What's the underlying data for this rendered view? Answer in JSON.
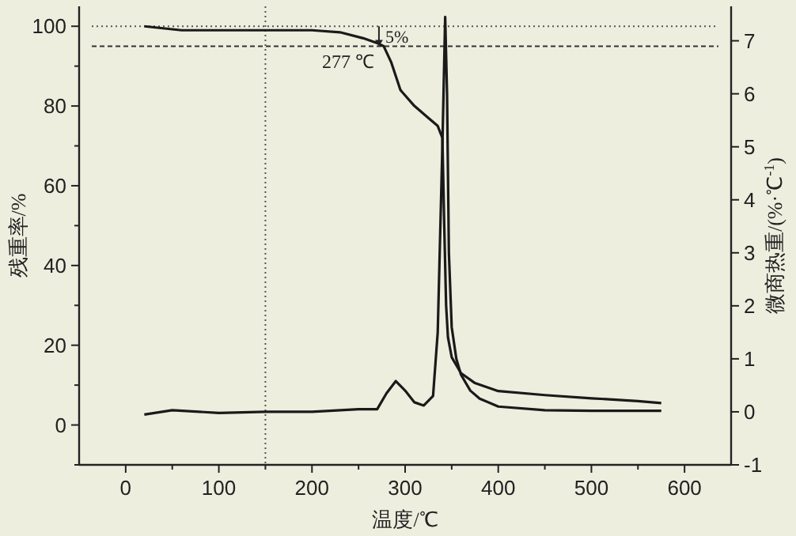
{
  "chart_data": {
    "type": "line",
    "xlabel": "温度/℃",
    "ylabel": "残重率/%",
    "y2label": "微商热重/(%·℃$^{-1}$)",
    "xlim": [
      -50,
      650
    ],
    "xticks": [
      0,
      {
        "value": 50,
        "label": null
      },
      100,
      {
        "value": 150,
        "label": null
      },
      200,
      {
        "value": 250,
        "label": null
      },
      300,
      {
        "value": 350,
        "label": null
      },
      400,
      {
        "value": 450,
        "label": null
      },
      500,
      {
        "value": 550,
        "label": null
      },
      600
    ],
    "ylim": [
      -10,
      105
    ],
    "yticks": [
      {
        "value": -10,
        "label": null
      },
      0,
      {
        "value": 10,
        "label": null
      },
      20,
      {
        "value": 30,
        "label": null
      },
      40,
      {
        "value": 50,
        "label": null
      },
      60,
      {
        "value": 70,
        "label": null
      },
      80,
      {
        "value": 90,
        "label": null
      },
      100
    ],
    "y2lim": [
      -1,
      7.65
    ],
    "y2ticks": [
      -1,
      0,
      1,
      2,
      3,
      4,
      5,
      6,
      7
    ],
    "grid": false,
    "marker": "none",
    "line_style": "solid",
    "series": [
      {
        "color": "#1a1a1a",
        "axis": "y",
        "x": [
          20,
          40,
          60,
          100,
          150,
          200,
          230,
          255,
          270,
          277,
          285,
          295,
          310,
          325,
          335,
          340,
          342,
          344,
          346,
          350,
          360,
          375,
          400,
          450,
          500,
          550,
          575
        ],
        "values": [
          100,
          99.5,
          99,
          99,
          99,
          99,
          98.5,
          97,
          95.8,
          95,
          91,
          84,
          80,
          77,
          75,
          72,
          50,
          30,
          22,
          17,
          13,
          10.5,
          8.5,
          7.5,
          6.7,
          6,
          5.5
        ]
      },
      {
        "color": "#1a1a1a",
        "axis": "y2",
        "x": [
          20,
          50,
          100,
          150,
          200,
          250,
          270,
          280,
          290,
          300,
          310,
          320,
          330,
          335,
          340,
          343,
          345,
          347,
          350,
          355,
          360,
          370,
          380,
          400,
          450,
          500,
          575
        ],
        "values": [
          -0.05,
          0.03,
          -0.02,
          0,
          0,
          0.05,
          0.05,
          0.35,
          0.58,
          0.4,
          0.18,
          0.12,
          0.3,
          1.5,
          5,
          7.45,
          6,
          3,
          1.6,
          1.0,
          0.7,
          0.4,
          0.25,
          0.1,
          0.03,
          0.02,
          0.02
        ]
      }
    ],
    "ref_lines": [
      {
        "axis": "y",
        "value": 100,
        "line_style": "dotted",
        "color": "#555555"
      },
      {
        "axis": "y",
        "value": 95,
        "line_style": "dashed",
        "color": "#333333"
      },
      {
        "axis": "x",
        "value": 150,
        "line_style": "dotted",
        "color": "#555555"
      }
    ],
    "annotations": [
      "5%",
      {
        "text": "277 ℃",
        "x": 277,
        "y": 95
      }
    ]
  }
}
